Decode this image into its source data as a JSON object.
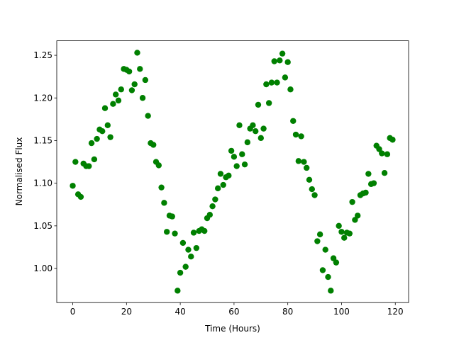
{
  "chart_data": {
    "type": "scatter",
    "xlabel": "Time (Hours)",
    "ylabel": "Normalised Flux",
    "color": "#008000",
    "x": [
      0,
      1,
      2,
      3,
      4,
      5,
      6,
      7,
      8,
      9,
      10,
      11,
      12,
      13,
      14,
      15,
      16,
      17,
      18,
      19,
      20,
      21,
      22,
      23,
      24,
      25,
      26,
      27,
      28,
      29,
      30,
      31,
      32,
      33,
      34,
      35,
      36,
      37,
      38,
      39,
      40,
      41,
      42,
      43,
      44,
      45,
      46,
      47,
      48,
      49,
      50,
      51,
      52,
      53,
      54,
      55,
      56,
      57,
      58,
      59,
      60,
      61,
      62,
      63,
      64,
      65,
      66,
      67,
      68,
      69,
      70,
      71,
      72,
      73,
      74,
      75,
      76,
      77,
      78,
      79,
      80,
      81,
      82,
      83,
      84,
      85,
      86,
      87,
      88,
      89,
      90,
      91,
      92,
      93,
      94,
      95,
      96,
      97,
      98,
      99,
      100,
      101,
      102,
      103,
      104,
      105,
      106,
      107,
      108,
      109,
      110,
      111,
      112,
      113,
      114,
      115,
      116,
      117,
      118,
      119
    ],
    "values": [
      1.097,
      1.125,
      1.087,
      1.084,
      1.123,
      1.12,
      1.12,
      1.147,
      1.128,
      1.152,
      1.163,
      1.161,
      1.188,
      1.168,
      1.154,
      1.193,
      1.204,
      1.197,
      1.21,
      1.234,
      1.233,
      1.231,
      1.209,
      1.216,
      1.253,
      1.234,
      1.2,
      1.221,
      1.179,
      1.147,
      1.145,
      1.125,
      1.121,
      1.095,
      1.077,
      1.043,
      1.062,
      1.061,
      1.041,
      0.974,
      0.995,
      1.03,
      1.002,
      1.022,
      1.014,
      1.042,
      1.024,
      1.044,
      1.046,
      1.044,
      1.059,
      1.063,
      1.073,
      1.081,
      1.094,
      1.111,
      1.098,
      1.107,
      1.109,
      1.138,
      1.131,
      1.12,
      1.168,
      1.134,
      1.122,
      1.148,
      1.164,
      1.168,
      1.161,
      1.192,
      1.153,
      1.164,
      1.216,
      1.194,
      1.218,
      1.243,
      1.218,
      1.244,
      1.252,
      1.224,
      1.242,
      1.21,
      1.173,
      1.157,
      1.126,
      1.155,
      1.125,
      1.118,
      1.104,
      1.093,
      1.086,
      1.032,
      1.04,
      0.998,
      1.022,
      0.99,
      0.974,
      1.012,
      1.007,
      1.05,
      1.043,
      1.036,
      1.042,
      1.041,
      1.078,
      1.057,
      1.062,
      1.086,
      1.088,
      1.089,
      1.111,
      1.099,
      1.1,
      1.144,
      1.14,
      1.135,
      1.112,
      1.134,
      1.153,
      1.151
    ],
    "xlim": [
      -5.95,
      124.95
    ],
    "xticks": [
      0,
      20,
      40,
      60,
      80,
      100,
      120
    ],
    "ylim": [
      0.96,
      1.267
    ],
    "yticks": [
      {
        "value": 1.0,
        "label": "1.00"
      },
      {
        "value": 1.05,
        "label": "1.05"
      },
      {
        "value": 1.1,
        "label": "1.10"
      },
      {
        "value": 1.15,
        "label": "1.15"
      },
      {
        "value": 1.2,
        "label": "1.20"
      },
      {
        "value": 1.25,
        "label": "1.25"
      }
    ]
  }
}
